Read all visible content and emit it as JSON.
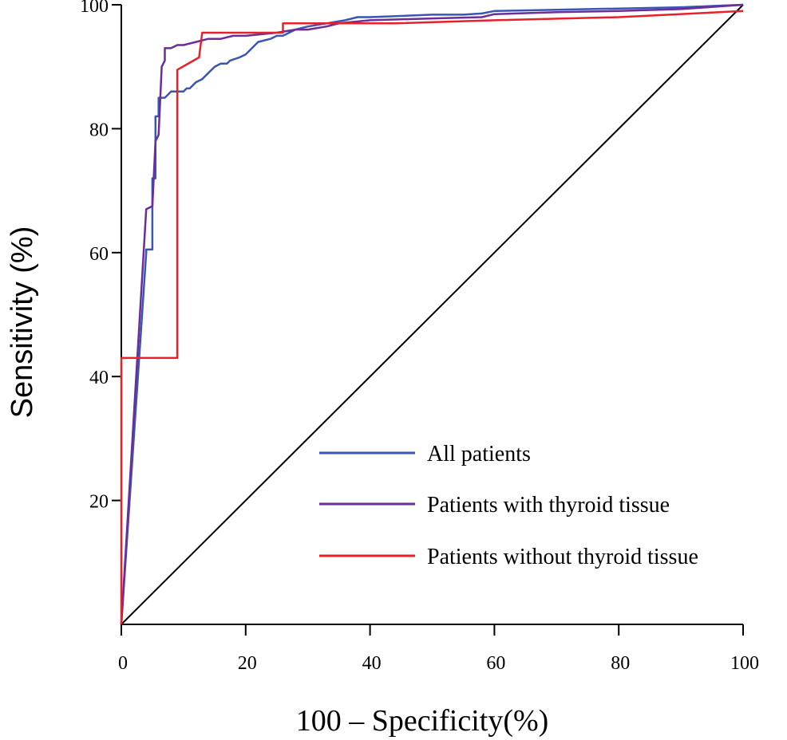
{
  "chart_data": {
    "type": "line",
    "title": "",
    "xlabel": "100 – Specificity(%)",
    "ylabel": "Sensitivity (%)",
    "xlim": [
      0,
      100
    ],
    "ylim": [
      0,
      100
    ],
    "x_ticks": [
      "0",
      "20",
      "40",
      "60",
      "80",
      "100"
    ],
    "y_ticks": [
      "20",
      "40",
      "60",
      "80",
      "100"
    ],
    "grid": false,
    "legend_position": "bottom-right",
    "reference_line": {
      "from": [
        0,
        0
      ],
      "to": [
        100,
        100
      ],
      "color": "#000000"
    },
    "series": [
      {
        "name": "All patients",
        "color": "#3a55b4",
        "points": [
          [
            0,
            0
          ],
          [
            4,
            60
          ],
          [
            4,
            60.5
          ],
          [
            5,
            60.5
          ],
          [
            5,
            72
          ],
          [
            5.5,
            72
          ],
          [
            5.5,
            82
          ],
          [
            6,
            82
          ],
          [
            6,
            85
          ],
          [
            7,
            85
          ],
          [
            7.5,
            85.5
          ],
          [
            8,
            86
          ],
          [
            10,
            86
          ],
          [
            10.5,
            86.5
          ],
          [
            11,
            86.5
          ],
          [
            12,
            87.5
          ],
          [
            13,
            88
          ],
          [
            14,
            89
          ],
          [
            15,
            90
          ],
          [
            16,
            90.5
          ],
          [
            17,
            90.5
          ],
          [
            17.5,
            91
          ],
          [
            19,
            91.5
          ],
          [
            20,
            92
          ],
          [
            22,
            94
          ],
          [
            24,
            94.5
          ],
          [
            25,
            95
          ],
          [
            26,
            95
          ],
          [
            27,
            95.5
          ],
          [
            28,
            96
          ],
          [
            30,
            96.5
          ],
          [
            33,
            97
          ],
          [
            36,
            97.5
          ],
          [
            38,
            98
          ],
          [
            40,
            98
          ],
          [
            45,
            98.2
          ],
          [
            50,
            98.4
          ],
          [
            55,
            98.4
          ],
          [
            58,
            98.6
          ],
          [
            60,
            99
          ],
          [
            70,
            99.2
          ],
          [
            80,
            99.4
          ],
          [
            90,
            99.6
          ],
          [
            100,
            100
          ]
        ]
      },
      {
        "name": "Patients with thyroid tissue",
        "color": "#6a2d9a",
        "points": [
          [
            0,
            0
          ],
          [
            4,
            67
          ],
          [
            5,
            67.5
          ],
          [
            5.5,
            78
          ],
          [
            6,
            79
          ],
          [
            6.5,
            90
          ],
          [
            7,
            91
          ],
          [
            7,
            93
          ],
          [
            8,
            93
          ],
          [
            9,
            93.5
          ],
          [
            10,
            93.5
          ],
          [
            12,
            94
          ],
          [
            14,
            94.5
          ],
          [
            16,
            94.5
          ],
          [
            18,
            95
          ],
          [
            20,
            95
          ],
          [
            25,
            95.5
          ],
          [
            28,
            96
          ],
          [
            30,
            96
          ],
          [
            33,
            96.5
          ],
          [
            35,
            97
          ],
          [
            40,
            97.5
          ],
          [
            50,
            97.8
          ],
          [
            58,
            98
          ],
          [
            60,
            98.5
          ],
          [
            70,
            98.8
          ],
          [
            80,
            99
          ],
          [
            90,
            99.3
          ],
          [
            100,
            100
          ]
        ]
      },
      {
        "name": "Patients without thyroid tissue",
        "color": "#e8202a",
        "points": [
          [
            0,
            0
          ],
          [
            0,
            43
          ],
          [
            9,
            43
          ],
          [
            9,
            89.5
          ],
          [
            12.5,
            91.5
          ],
          [
            13,
            95.5
          ],
          [
            26,
            95.5
          ],
          [
            26,
            97
          ],
          [
            40,
            97
          ],
          [
            44,
            97
          ],
          [
            60,
            97.5
          ],
          [
            80,
            98
          ],
          [
            100,
            99
          ]
        ]
      }
    ]
  }
}
